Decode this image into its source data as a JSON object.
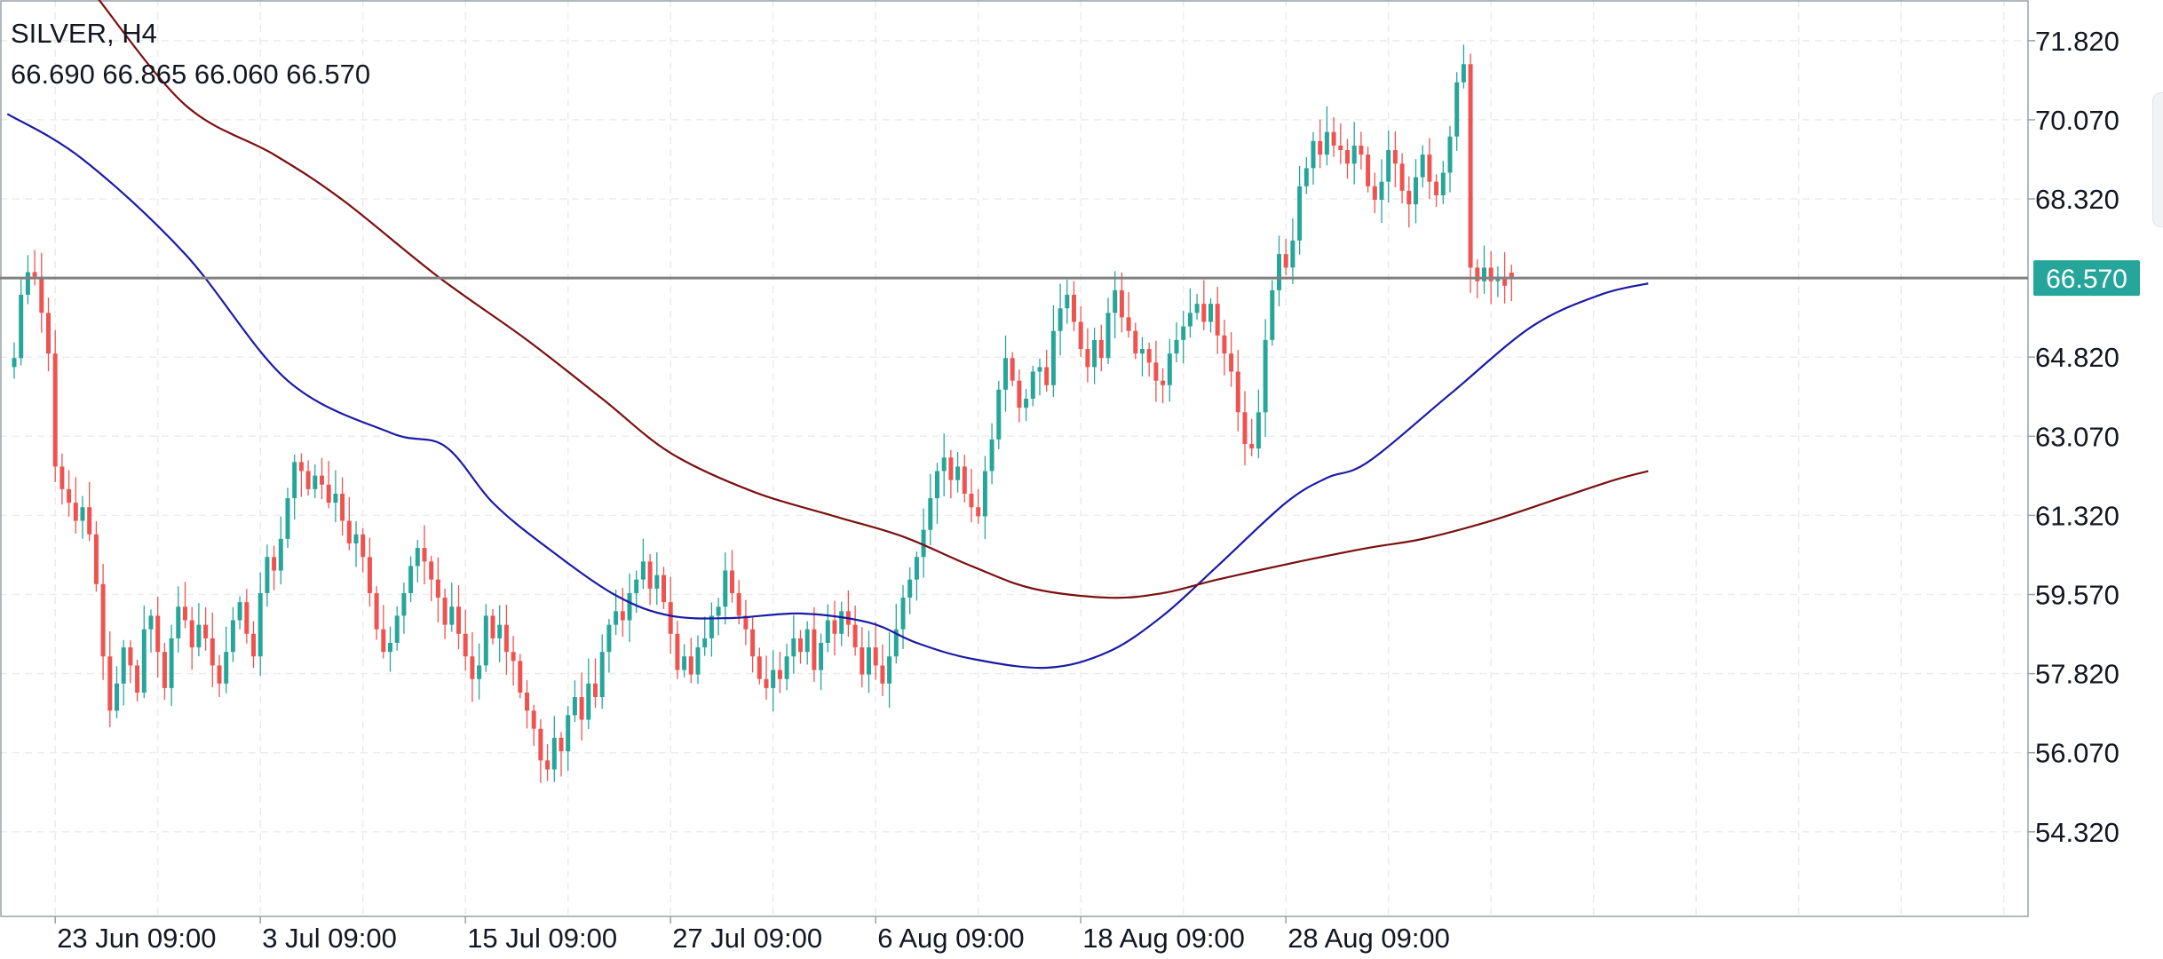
{
  "header": {
    "symbol": "SILVER, H4",
    "ohlc": "66.690 66.865 66.060 66.570"
  },
  "colors": {
    "bull": "#26a69a",
    "bear": "#ef5350",
    "ma_fast": "#1a1aa6",
    "ma_slow": "#7b1010",
    "price_line": "#808080",
    "price_badge": "#26a69a",
    "grid": "#ececec",
    "axis_text": "#131722"
  },
  "chart_data": {
    "type": "candlestick",
    "instrument": "SILVER",
    "timeframe": "H4",
    "ylim": [
      52.45,
      72.72
    ],
    "y_ticks": [
      54.32,
      56.07,
      57.82,
      59.57,
      61.32,
      63.07,
      64.82,
      66.57,
      68.32,
      70.07,
      71.82
    ],
    "y_tick_labels": [
      "54.320",
      "56.070",
      "57.820",
      "59.570",
      "61.320",
      "63.070",
      "64.820",
      "",
      "68.320",
      "70.070",
      "71.820"
    ],
    "x_tick_labels": [
      "23 Jun 09:00",
      "3 Jul 09:00",
      "15 Jul 09:00",
      "27 Jul 09:00",
      "6 Aug 09:00",
      "18 Aug 09:00",
      "28 Aug 09:00"
    ],
    "x_tick_index": [
      6,
      36,
      66,
      96,
      126,
      156,
      186
    ],
    "current_price": 66.57,
    "current_price_label": "66.570",
    "last": {
      "open": 66.69,
      "high": 66.865,
      "low": 66.06,
      "close": 66.57
    },
    "grid": true,
    "closes": [
      64.8,
      66.2,
      66.7,
      66.6,
      65.8,
      64.9,
      62.4,
      61.9,
      61.6,
      61.2,
      61.5,
      60.9,
      59.8,
      58.2,
      57.0,
      57.6,
      58.4,
      58.0,
      57.4,
      58.8,
      59.1,
      58.3,
      57.5,
      58.6,
      59.3,
      59.0,
      58.4,
      58.9,
      58.6,
      58.0,
      57.6,
      58.3,
      59.0,
      59.4,
      58.7,
      58.2,
      59.6,
      60.4,
      60.1,
      60.8,
      61.7,
      62.5,
      62.3,
      61.9,
      62.2,
      62.0,
      61.6,
      61.8,
      61.2,
      60.7,
      60.9,
      60.4,
      59.6,
      58.8,
      58.3,
      58.5,
      59.1,
      59.6,
      60.2,
      60.6,
      60.3,
      59.9,
      59.5,
      58.9,
      59.3,
      58.7,
      58.2,
      57.7,
      58.0,
      59.1,
      58.6,
      58.9,
      58.3,
      58.1,
      57.4,
      57.0,
      56.6,
      55.9,
      55.7,
      56.4,
      56.1,
      56.9,
      57.3,
      56.8,
      57.6,
      57.3,
      58.3,
      58.9,
      59.2,
      59.0,
      59.6,
      59.9,
      60.3,
      59.7,
      60.0,
      59.4,
      58.7,
      57.9,
      58.2,
      57.8,
      58.4,
      58.6,
      59.1,
      59.3,
      60.1,
      59.6,
      59.1,
      58.8,
      58.2,
      57.7,
      57.5,
      57.9,
      57.7,
      58.2,
      58.6,
      58.3,
      58.8,
      57.9,
      58.5,
      59.0,
      58.7,
      59.2,
      58.9,
      58.4,
      57.8,
      58.4,
      58.0,
      57.6,
      58.2,
      58.8,
      59.5,
      59.9,
      60.4,
      61.0,
      61.7,
      62.3,
      62.6,
      62.1,
      62.4,
      61.8,
      61.5,
      61.3,
      62.3,
      63.0,
      64.1,
      64.8,
      64.3,
      63.7,
      63.9,
      64.5,
      64.6,
      64.2,
      65.4,
      65.9,
      66.2,
      65.6,
      65.0,
      64.6,
      65.2,
      64.8,
      65.8,
      66.3,
      65.7,
      65.4,
      64.9,
      65.0,
      64.7,
      64.3,
      64.2,
      64.9,
      65.2,
      65.5,
      65.8,
      66.0,
      65.6,
      66.0,
      65.3,
      64.9,
      64.5,
      63.6,
      62.9,
      62.8,
      63.6,
      65.2,
      66.3,
      67.1,
      66.8,
      67.4,
      68.6,
      69.0,
      69.6,
      69.3,
      69.8,
      69.5,
      69.4,
      69.1,
      69.5,
      69.3,
      68.6,
      68.3,
      68.7,
      69.4,
      69.1,
      68.5,
      68.2,
      68.8,
      69.3,
      68.7,
      68.4,
      68.9,
      69.7,
      70.9,
      71.3,
      66.8,
      66.5,
      66.8,
      66.5,
      66.6,
      66.4,
      66.57
    ]
  },
  "indicators": [
    {
      "type": "moving_average",
      "color": "#1a1aa6",
      "points": [
        [
          -1,
          70.2
        ],
        [
          10,
          69.2
        ],
        [
          25,
          67.1
        ],
        [
          40,
          64.3
        ],
        [
          55,
          63.15
        ],
        [
          63,
          62.85
        ],
        [
          70,
          61.6
        ],
        [
          78,
          60.6
        ],
        [
          88,
          59.55
        ],
        [
          96,
          59.1
        ],
        [
          105,
          59.05
        ],
        [
          115,
          59.15
        ],
        [
          125,
          58.95
        ],
        [
          132,
          58.5
        ],
        [
          140,
          58.15
        ],
        [
          151,
          57.95
        ],
        [
          160,
          58.3
        ],
        [
          168,
          59.1
        ],
        [
          176,
          60.2
        ],
        [
          186,
          61.6
        ],
        [
          192,
          62.15
        ],
        [
          198,
          62.5
        ],
        [
          210,
          64.0
        ],
        [
          222,
          65.5
        ],
        [
          232,
          66.2
        ],
        [
          239,
          66.45
        ]
      ]
    },
    {
      "type": "moving_average",
      "color": "#7b1010",
      "points": [
        [
          12,
          72.8
        ],
        [
          25,
          70.4
        ],
        [
          38,
          69.3
        ],
        [
          48,
          68.3
        ],
        [
          62,
          66.6
        ],
        [
          75,
          65.2
        ],
        [
          86,
          63.9
        ],
        [
          96,
          62.7
        ],
        [
          108,
          61.85
        ],
        [
          120,
          61.3
        ],
        [
          130,
          60.85
        ],
        [
          140,
          60.2
        ],
        [
          149,
          59.7
        ],
        [
          160,
          59.5
        ],
        [
          168,
          59.6
        ],
        [
          176,
          59.9
        ],
        [
          188,
          60.3
        ],
        [
          198,
          60.6
        ],
        [
          206,
          60.8
        ],
        [
          216,
          61.2
        ],
        [
          226,
          61.7
        ],
        [
          234,
          62.1
        ],
        [
          239,
          62.3
        ]
      ]
    }
  ]
}
